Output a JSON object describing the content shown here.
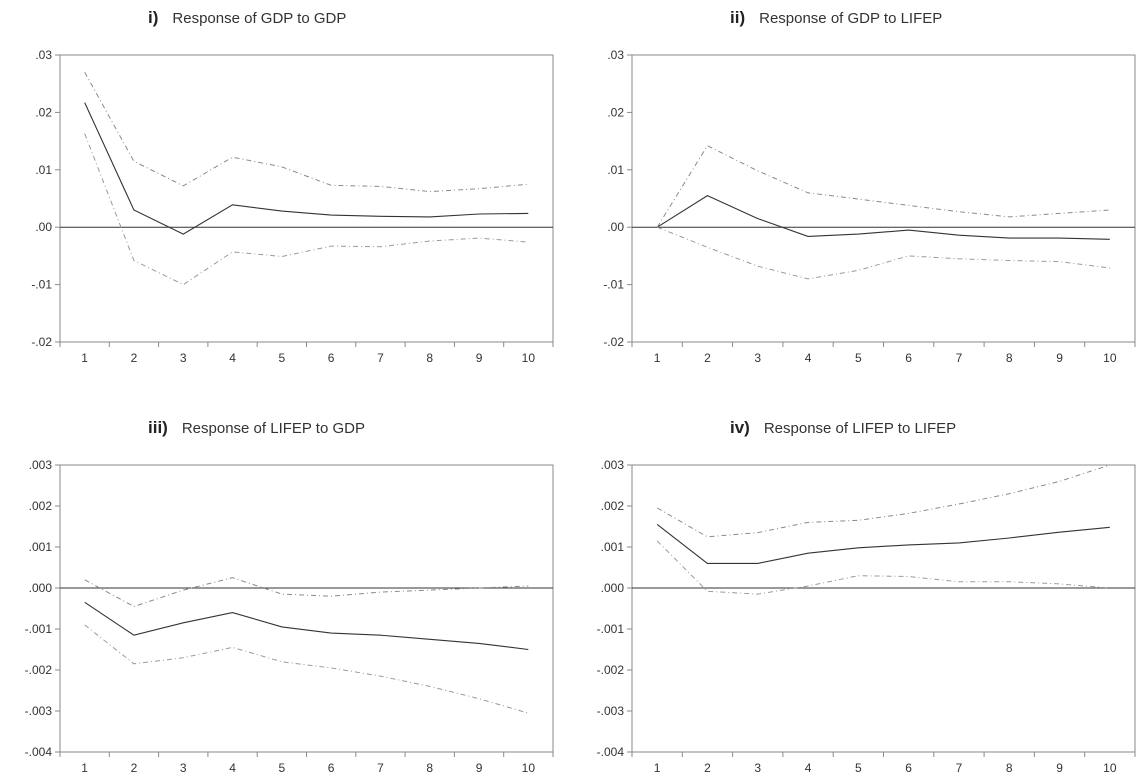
{
  "chart_data": [
    {
      "type": "line",
      "number": "i)",
      "title": "Response of GDP to GDP",
      "categories": [
        1,
        2,
        3,
        4,
        5,
        6,
        7,
        8,
        9,
        10
      ],
      "ylim": [
        -0.02,
        0.03
      ],
      "yticks": [
        0.03,
        0.02,
        0.01,
        0.0,
        -0.01,
        -0.02
      ],
      "ytick_labels": [
        ".03",
        ".02",
        ".01",
        ".00",
        "-.01",
        "-.02"
      ],
      "series": [
        {
          "values": [
            0.0217,
            0.003,
            -0.0012,
            0.0039,
            0.0028,
            0.0021,
            0.0019,
            0.0018,
            0.0023,
            0.0024
          ]
        },
        {
          "values": [
            0.027,
            0.0115,
            0.0072,
            0.0122,
            0.0105,
            0.0073,
            0.0071,
            0.0062,
            0.0067,
            0.0075
          ]
        },
        {
          "values": [
            0.0163,
            -0.0058,
            -0.01,
            -0.0043,
            -0.0051,
            -0.0033,
            -0.0034,
            -0.0024,
            -0.0019,
            -0.0026
          ]
        }
      ]
    },
    {
      "type": "line",
      "number": "ii)",
      "title": "Response of GDP to LIFEP",
      "categories": [
        1,
        2,
        3,
        4,
        5,
        6,
        7,
        8,
        9,
        10
      ],
      "ylim": [
        -0.02,
        0.03
      ],
      "yticks": [
        0.03,
        0.02,
        0.01,
        0.0,
        -0.01,
        -0.02
      ],
      "ytick_labels": [
        ".03",
        ".02",
        ".01",
        ".00",
        "-.01",
        "-.02"
      ],
      "series": [
        {
          "values": [
            0.0,
            0.0055,
            0.0015,
            -0.0016,
            -0.0012,
            -0.0005,
            -0.0014,
            -0.0019,
            -0.0019,
            -0.0021
          ]
        },
        {
          "values": [
            0.0,
            0.0142,
            0.0098,
            0.006,
            0.0049,
            0.0038,
            0.0027,
            0.0018,
            0.0024,
            0.003
          ]
        },
        {
          "values": [
            0.0,
            -0.0035,
            -0.0068,
            -0.009,
            -0.0075,
            -0.005,
            -0.0055,
            -0.0058,
            -0.006,
            -0.0071
          ]
        }
      ]
    },
    {
      "type": "line",
      "number": "iii)",
      "title": "Response of LIFEP to GDP",
      "categories": [
        1,
        2,
        3,
        4,
        5,
        6,
        7,
        8,
        9,
        10
      ],
      "ylim": [
        -0.004,
        0.003
      ],
      "yticks": [
        0.003,
        0.002,
        0.001,
        0.0,
        -0.001,
        -0.002,
        -0.003,
        -0.004
      ],
      "ytick_labels": [
        ".003",
        ".002",
        ".001",
        ".000",
        "-.001",
        "-.002",
        "-.003",
        "-.004"
      ],
      "series": [
        {
          "values": [
            -0.00035,
            -0.00115,
            -0.00085,
            -0.0006,
            -0.00095,
            -0.0011,
            -0.00115,
            -0.00125,
            -0.00135,
            -0.0015
          ]
        },
        {
          "values": [
            0.0002,
            -0.00045,
            -5e-05,
            0.00025,
            -0.00015,
            -0.0002,
            -0.0001,
            -5e-05,
            0.0,
            5e-05
          ]
        },
        {
          "values": [
            -0.0009,
            -0.00185,
            -0.0017,
            -0.00145,
            -0.0018,
            -0.00195,
            -0.00215,
            -0.0024,
            -0.0027,
            -0.00305
          ]
        }
      ]
    },
    {
      "type": "line",
      "number": "iv)",
      "title": "Response of LIFEP to LIFEP",
      "categories": [
        1,
        2,
        3,
        4,
        5,
        6,
        7,
        8,
        9,
        10
      ],
      "ylim": [
        -0.004,
        0.003
      ],
      "yticks": [
        0.003,
        0.002,
        0.001,
        0.0,
        -0.001,
        -0.002,
        -0.003,
        -0.004
      ],
      "ytick_labels": [
        ".003",
        ".002",
        ".001",
        ".000",
        "-.001",
        "-.002",
        "-.003",
        "-.004"
      ],
      "series": [
        {
          "values": [
            0.00155,
            0.0006,
            0.0006,
            0.00085,
            0.00098,
            0.00105,
            0.0011,
            0.00122,
            0.00136,
            0.00148
          ]
        },
        {
          "values": [
            0.00195,
            0.00125,
            0.00135,
            0.0016,
            0.00165,
            0.00182,
            0.00205,
            0.0023,
            0.0026,
            0.003
          ]
        },
        {
          "values": [
            0.00115,
            -8e-05,
            -0.00015,
            5e-05,
            0.0003,
            0.00028,
            0.00015,
            0.00015,
            0.0001,
            0.0
          ]
        }
      ]
    }
  ],
  "colors": {
    "frame": "#8a8a8a",
    "zero_line": "#333333",
    "response": "#333333",
    "band_upper": "#8a8a8a",
    "band_lower": "#9a9a9a"
  }
}
